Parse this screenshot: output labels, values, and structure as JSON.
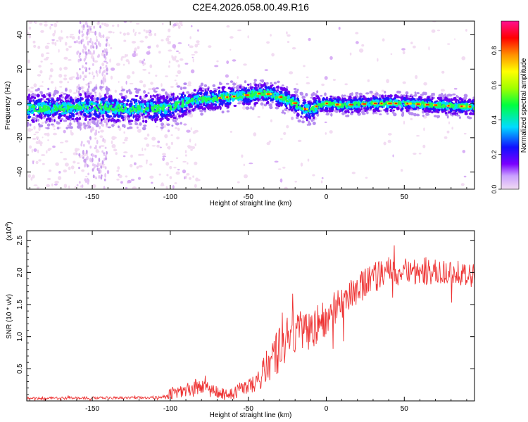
{
  "title": "C2E4.2026.058.00.49.R16",
  "chart_data": [
    {
      "type": "heatmap",
      "name": "spectrogram",
      "xlabel": "Height of straight line (km)",
      "ylabel": "Frequency (Hz)",
      "xlim": [
        -192,
        95
      ],
      "ylim": [
        -50,
        48
      ],
      "xticks": [
        -150,
        -100,
        -50,
        0,
        50
      ],
      "yticks": [
        -40,
        -20,
        0,
        20,
        40
      ],
      "ridge": {
        "x": [
          -192,
          -170,
          -150,
          -130,
          -110,
          -100,
          -85,
          -70,
          -60,
          -50,
          -40,
          -30,
          -25,
          -20,
          -15,
          -10,
          -5,
          0,
          10,
          30,
          50,
          70,
          95
        ],
        "hz": [
          -3,
          -3,
          -2,
          -3,
          -3,
          -2,
          2,
          3,
          4,
          5,
          6,
          4,
          2,
          0,
          -3,
          -4,
          -1,
          0,
          -1,
          0,
          0,
          -1,
          -2
        ]
      },
      "colorbar": {
        "label": "Normalized spectral amplitude",
        "range": [
          0,
          0.97
        ],
        "ticks": [
          "0.0",
          "0.2",
          "0.4",
          "0.6",
          "0.8"
        ],
        "colors": [
          "#f2dcf2",
          "#7a00ff",
          "#1010ff",
          "#00dcff",
          "#00ff40",
          "#a0ff00",
          "#ffff00",
          "#ff9000",
          "#ff0000",
          "#ff1090"
        ]
      }
    },
    {
      "type": "line",
      "name": "snr",
      "xlabel": "Height of straight line (km)",
      "ylabel": "SNR (10 * v/v)",
      "exponent_label": "(x10",
      "exponent_power": "4",
      "exponent_close": ")",
      "xlim": [
        -192,
        95
      ],
      "ylim": [
        0,
        2.65
      ],
      "xticks": [
        -150,
        -100,
        -50,
        0,
        50
      ],
      "yticks": [
        0.5,
        1.0,
        1.5,
        2.0,
        2.5
      ],
      "ytick_labels": [
        "0.5",
        "1.0",
        "1.5",
        "2.0",
        "2.5"
      ],
      "color": "#ee3333",
      "trend": {
        "x": [
          -192,
          -120,
          -105,
          -100,
          -90,
          -80,
          -75,
          -70,
          -60,
          -55,
          -50,
          -45,
          -40,
          -35,
          -30,
          -25,
          -20,
          -15,
          -10,
          -5,
          0,
          5,
          10,
          15,
          20,
          30,
          40,
          60,
          80,
          95
        ],
        "y": [
          0.04,
          0.05,
          0.06,
          0.12,
          0.18,
          0.22,
          0.2,
          0.12,
          0.1,
          0.18,
          0.22,
          0.28,
          0.45,
          0.65,
          0.8,
          0.95,
          1.05,
          1.1,
          1.12,
          1.2,
          1.3,
          1.4,
          1.5,
          1.6,
          1.75,
          1.9,
          2.0,
          2.03,
          2.0,
          1.95
        ],
        "noise": [
          0.02,
          0.02,
          0.03,
          0.09,
          0.12,
          0.15,
          0.14,
          0.1,
          0.1,
          0.12,
          0.12,
          0.15,
          0.25,
          0.3,
          0.35,
          0.35,
          0.35,
          0.35,
          0.32,
          0.3,
          0.3,
          0.3,
          0.3,
          0.28,
          0.25,
          0.25,
          0.25,
          0.22,
          0.2,
          0.2
        ]
      }
    }
  ]
}
